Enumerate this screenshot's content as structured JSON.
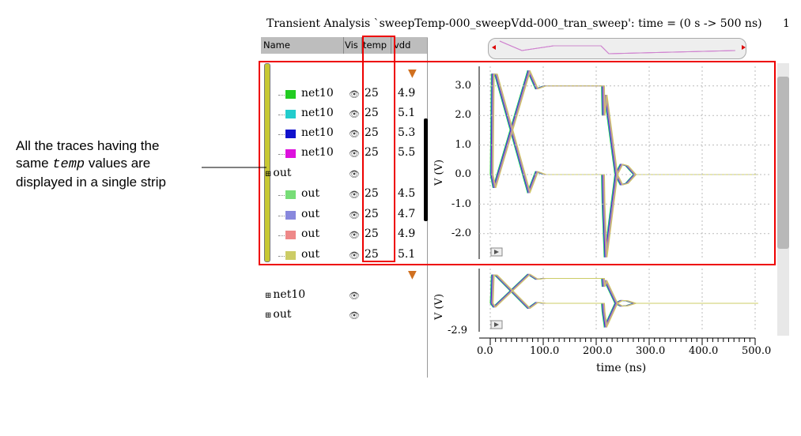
{
  "title": "Transient Analysis `sweepTemp-000_sweepVdd-000_tran_sweep': time = (0 s -> 500 ns)",
  "page_number": "1",
  "annotation": {
    "line1": "All the traces having the",
    "line2a": "same ",
    "line2b": "temp",
    "line2c": " values are",
    "line3": "displayed in a single strip"
  },
  "columns": {
    "name": "Name",
    "vis": "Vis",
    "temp": "temp",
    "vdd": "vdd"
  },
  "strip1": {
    "rows": [
      {
        "name": "net10",
        "temp": "25",
        "vdd": "4.9",
        "color": "#22cc22"
      },
      {
        "name": "net10",
        "temp": "25",
        "vdd": "5.1",
        "color": "#22cccc"
      },
      {
        "name": "net10",
        "temp": "25",
        "vdd": "5.3",
        "color": "#1111cc"
      },
      {
        "name": "net10",
        "temp": "25",
        "vdd": "5.5",
        "color": "#dd11dd"
      },
      {
        "name": "out",
        "temp": "",
        "vdd": "",
        "color": ""
      },
      {
        "name": "out",
        "temp": "25",
        "vdd": "4.5",
        "color": "#77dd77"
      },
      {
        "name": "out",
        "temp": "25",
        "vdd": "4.7",
        "color": "#8888dd"
      },
      {
        "name": "out",
        "temp": "25",
        "vdd": "4.9",
        "color": "#ee8888"
      },
      {
        "name": "out",
        "temp": "25",
        "vdd": "5.1",
        "color": "#cccc66"
      }
    ]
  },
  "strip2": {
    "rows": [
      {
        "name": "net10"
      },
      {
        "name": "out"
      }
    ]
  },
  "plot1": {
    "ylabel": "V (V)",
    "yticks": [
      "3.0",
      "2.0",
      "1.0",
      "0.0",
      "-1.0",
      "-2.0"
    ]
  },
  "plot2": {
    "ylabel": "V (V)",
    "ytick": "-2.9"
  },
  "xaxis": {
    "label": "time (ns)",
    "ticks": [
      "0.0",
      "100.0",
      "200.0",
      "300.0",
      "400.0",
      "500.0"
    ]
  },
  "colors": {
    "highlight": "#ee0000"
  }
}
